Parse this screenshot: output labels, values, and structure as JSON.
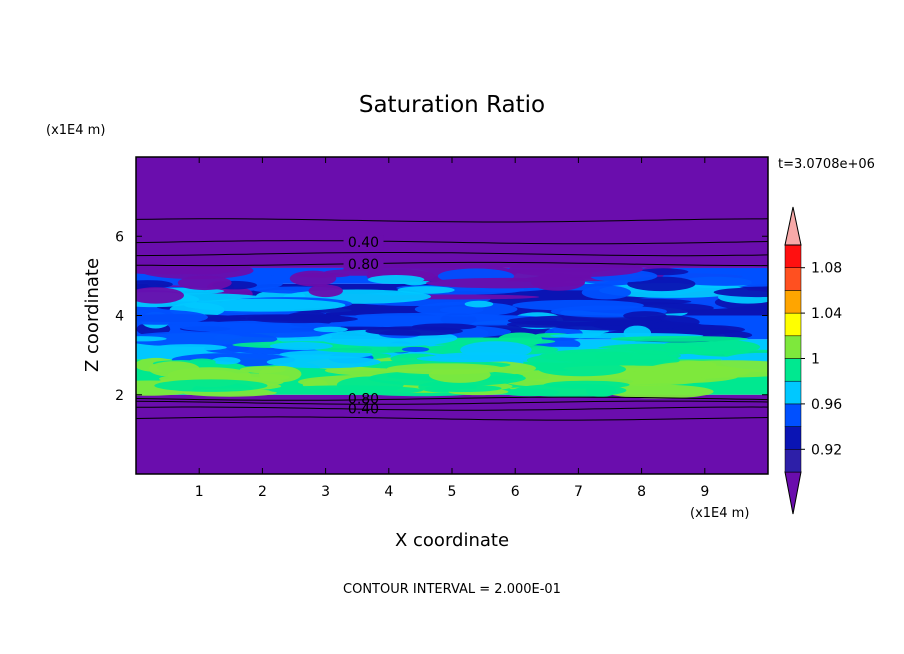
{
  "chart_data": {
    "type": "heatmap",
    "title": "Saturation Ratio",
    "xlabel": "X coordinate",
    "ylabel": "Z coordinate",
    "x_unit": "(x1E4 m)",
    "y_unit": "(x1E4 m)",
    "xlim": [
      0,
      10
    ],
    "ylim": [
      0,
      8
    ],
    "x_ticks": [
      "1",
      "2",
      "3",
      "4",
      "5",
      "6",
      "7",
      "8",
      "9"
    ],
    "y_ticks": [
      "2",
      "4",
      "6"
    ],
    "time_label": "t=3.0708e+06",
    "footer": "CONTOUR INTERVAL = 2.000E-01",
    "colorbar": {
      "levels": [
        0.9,
        0.92,
        0.94,
        0.96,
        0.98,
        1.0,
        1.02,
        1.04,
        1.06,
        1.08,
        1.1
      ],
      "tick_labels": [
        "0.92",
        "0.96",
        "1",
        "1.04",
        "1.08"
      ],
      "colors": [
        "#6a0dad",
        "#2d1fa8",
        "#0a14b4",
        "#0050ff",
        "#00c8ff",
        "#00e890",
        "#7ee83c",
        "#ffff00",
        "#ffa500",
        "#ff5020",
        "#ff1010",
        "#f7a9a8"
      ]
    },
    "contour_labels_upper": [
      "0.40",
      "0.80"
    ],
    "contour_labels_lower": [
      "0.80",
      "0.40"
    ],
    "bands": [
      {
        "z_min": 0.0,
        "z_max": 2.0,
        "color": "#6a0dad"
      },
      {
        "z_min": 2.0,
        "z_max": 2.9,
        "color": "#00e890"
      },
      {
        "z_min": 2.9,
        "z_max": 3.4,
        "color": "#00c8ff"
      },
      {
        "z_min": 3.4,
        "z_max": 4.0,
        "color": "#0050ff"
      },
      {
        "z_min": 4.0,
        "z_max": 4.8,
        "color": "#0a14b4"
      },
      {
        "z_min": 4.8,
        "z_max": 5.2,
        "color": "#0050ff"
      },
      {
        "z_min": 5.2,
        "z_max": 8.0,
        "color": "#6a0dad"
      }
    ],
    "contour_lines_z": [
      1.4,
      1.65,
      1.8,
      1.9,
      5.3,
      5.55,
      5.85,
      6.4
    ]
  }
}
